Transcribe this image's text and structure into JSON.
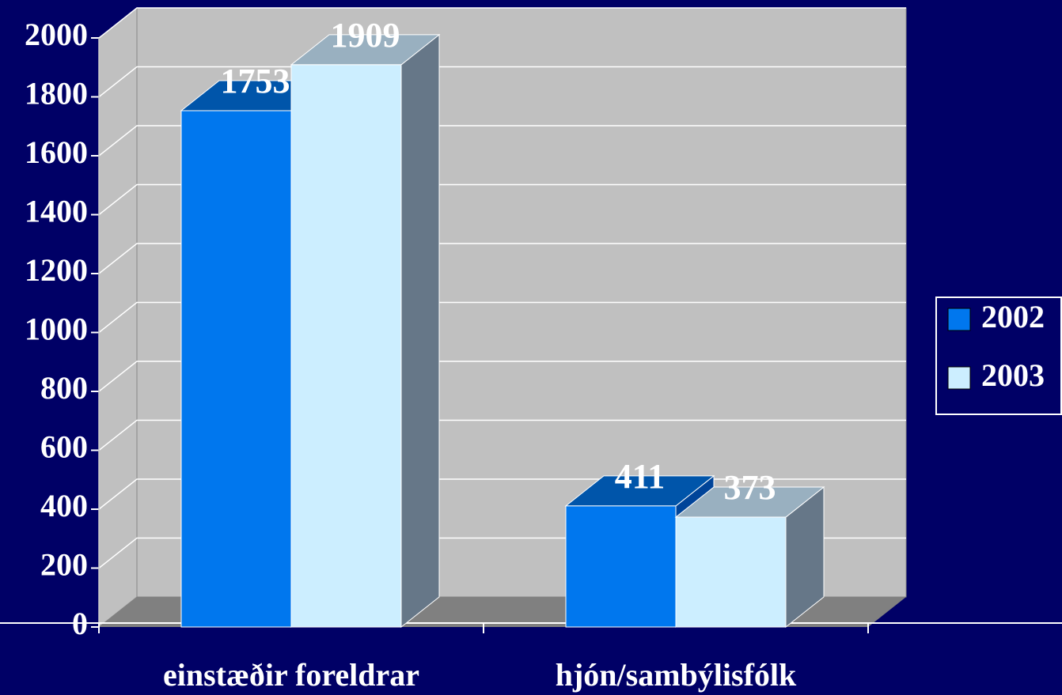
{
  "chart_data": {
    "type": "bar3d",
    "categories": [
      "einstæðir foreldrar",
      "hjón/sambýlisfólk"
    ],
    "series": [
      {
        "name": "2002",
        "color": "#0077ee",
        "values": [
          1753,
          411
        ]
      },
      {
        "name": "2003",
        "color": "#cceeff",
        "values": [
          1909,
          373
        ]
      }
    ],
    "ylim": [
      0,
      2000
    ],
    "yticks": [
      0,
      200,
      400,
      600,
      800,
      1000,
      1200,
      1400,
      1600,
      1800,
      2000
    ],
    "grid": true,
    "legend": "right"
  }
}
